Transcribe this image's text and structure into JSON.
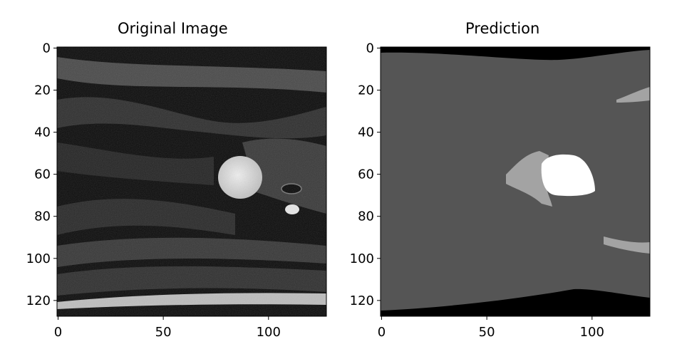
{
  "panels": [
    {
      "title": "Original Image",
      "image": "grayscale MRI slice",
      "colors": {
        "background": "#0b0b0b",
        "tissue": "#262626",
        "bright_structure": "#d8d8d8"
      },
      "x_ticks": [
        "0",
        "50",
        "100"
      ],
      "y_ticks": [
        "0",
        "20",
        "40",
        "60",
        "80",
        "100",
        "120"
      ]
    },
    {
      "title": "Prediction",
      "image": "segmentation mask",
      "colors": {
        "background": "#000000",
        "label_1": "#555555",
        "label_2": "#a3a3a3",
        "label_3": "#ffffff"
      },
      "x_ticks": [
        "0",
        "50",
        "100"
      ],
      "y_ticks": [
        "0",
        "20",
        "40",
        "60",
        "80",
        "100",
        "120"
      ]
    }
  ]
}
